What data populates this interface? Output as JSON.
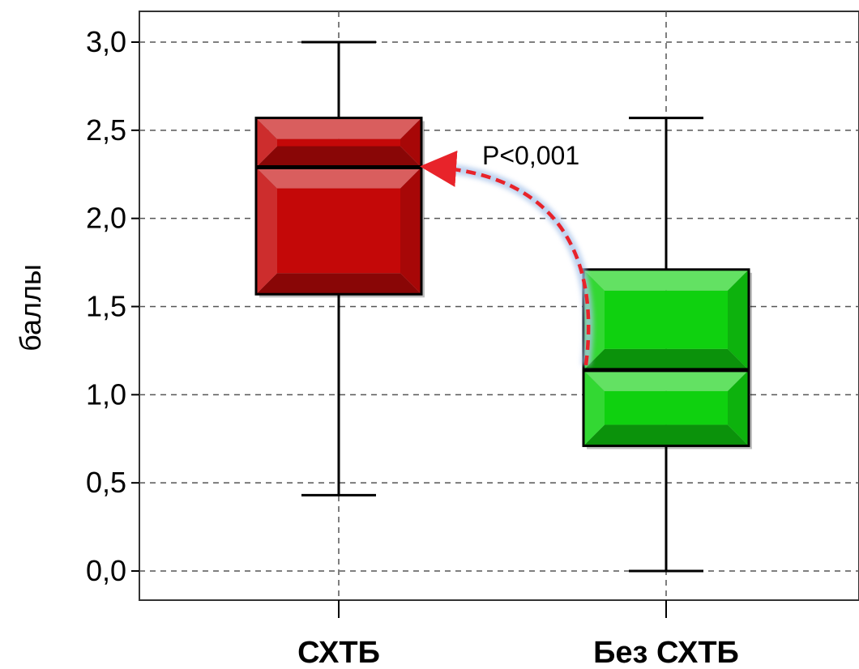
{
  "chart_data": {
    "type": "box",
    "ylabel": "баллы",
    "xlabel": "",
    "ylim": [
      0,
      3
    ],
    "yticks": [
      0,
      0.5,
      1,
      1.5,
      2,
      2.5,
      3
    ],
    "ytick_labels": [
      "0,0",
      "0,5",
      "1,0",
      "1,5",
      "2,0",
      "2,5",
      "3,0"
    ],
    "grid": true,
    "categories": [
      "СХТБ",
      "Без СХТБ"
    ],
    "boxes": [
      {
        "category": "СХТБ",
        "min": 0.43,
        "q1": 1.57,
        "median": 2.29,
        "q3": 2.57,
        "max": 3.0,
        "color": "#c40808"
      },
      {
        "category": "Без СХТБ",
        "min": 0.0,
        "q1": 0.71,
        "median": 1.14,
        "q3": 1.71,
        "max": 2.57,
        "color": "#0fd10f"
      }
    ],
    "annotation": {
      "text": "P<0,001",
      "arrow_color": "#e8232a",
      "glow_color": "#a9c4ea"
    }
  }
}
